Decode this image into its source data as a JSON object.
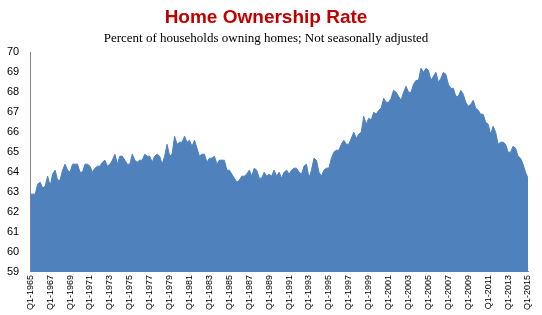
{
  "chart_data": {
    "type": "area",
    "title": "Home Ownership Rate",
    "subtitle": "Percent of households owning homes; Not seasonally adjusted",
    "categories": [
      "Q1-1965",
      null,
      null,
      null,
      null,
      null,
      null,
      null,
      "Q1-1967",
      null,
      null,
      null,
      null,
      null,
      null,
      null,
      "Q1-1969",
      null,
      null,
      null,
      null,
      null,
      null,
      null,
      "Q1-1971",
      null,
      null,
      null,
      null,
      null,
      null,
      null,
      "Q1-1973",
      null,
      null,
      null,
      null,
      null,
      null,
      null,
      "Q1-1975",
      null,
      null,
      null,
      null,
      null,
      null,
      null,
      "Q1-1977",
      null,
      null,
      null,
      null,
      null,
      null,
      null,
      "Q1-1979",
      null,
      null,
      null,
      null,
      null,
      null,
      null,
      "Q1-1981",
      null,
      null,
      null,
      null,
      null,
      null,
      null,
      "Q1-1983",
      null,
      null,
      null,
      null,
      null,
      null,
      null,
      "Q1-1985",
      null,
      null,
      null,
      null,
      null,
      null,
      null,
      "Q1-1987",
      null,
      null,
      null,
      null,
      null,
      null,
      null,
      "Q1-1989",
      null,
      null,
      null,
      null,
      null,
      null,
      null,
      "Q1-1991",
      null,
      null,
      null,
      null,
      null,
      null,
      null,
      "Q1-1993",
      null,
      null,
      null,
      null,
      null,
      null,
      null,
      "Q1-1995",
      null,
      null,
      null,
      null,
      null,
      null,
      null,
      "Q1-1997",
      null,
      null,
      null,
      null,
      null,
      null,
      null,
      "Q1-1999",
      null,
      null,
      null,
      null,
      null,
      null,
      null,
      "Q1-2001",
      null,
      null,
      null,
      null,
      null,
      null,
      null,
      "Q1-2003",
      null,
      null,
      null,
      null,
      null,
      null,
      null,
      "Q1-2005",
      null,
      null,
      null,
      null,
      null,
      null,
      null,
      "Q1-2007",
      null,
      null,
      null,
      null,
      null,
      null,
      null,
      "Q1-2009",
      null,
      null,
      null,
      null,
      null,
      null,
      null,
      "Q1-2011",
      null,
      null,
      null,
      null,
      null,
      null,
      null,
      "Q1-2013",
      null,
      null,
      null,
      null,
      null,
      null,
      null,
      "Q1-2015"
    ],
    "values": [
      62.9,
      62.9,
      62.9,
      63.4,
      63.5,
      63.2,
      63.3,
      63.8,
      63.3,
      63.9,
      64.1,
      63.6,
      63.6,
      64.1,
      64.4,
      64.1,
      64.0,
      64.4,
      64.4,
      64.4,
      64.0,
      64.0,
      64.4,
      64.4,
      64.3,
      64.0,
      64.2,
      64.3,
      64.3,
      64.5,
      64.6,
      64.3,
      64.4,
      64.6,
      64.9,
      64.4,
      64.8,
      64.8,
      64.6,
      64.4,
      64.4,
      64.9,
      64.6,
      64.5,
      64.6,
      64.6,
      64.9,
      64.8,
      64.8,
      64.5,
      64.8,
      64.9,
      64.8,
      64.4,
      64.8,
      65.4,
      64.8,
      64.9,
      65.8,
      65.4,
      65.5,
      65.5,
      65.8,
      65.5,
      65.6,
      65.3,
      65.6,
      65.2,
      64.8,
      64.9,
      64.9,
      64.5,
      64.7,
      64.7,
      64.8,
      64.4,
      64.6,
      64.6,
      64.6,
      64.1,
      64.1,
      63.9,
      63.7,
      63.5,
      63.6,
      63.8,
      63.8,
      63.9,
      64.1,
      63.8,
      64.2,
      64.1,
      63.7,
      63.7,
      64.0,
      63.8,
      63.9,
      63.8,
      64.1,
      63.8,
      64.0,
      63.7,
      64.0,
      64.1,
      63.9,
      64.1,
      64.2,
      64.2,
      64.0,
      63.9,
      64.3,
      64.4,
      63.7,
      64.1,
      64.7,
      64.6,
      64.0,
      63.8,
      64.1,
      64.2,
      64.2,
      64.7,
      65.0,
      65.1,
      65.1,
      65.4,
      65.6,
      65.4,
      65.4,
      65.7,
      66.0,
      65.7,
      65.9,
      66.0,
      66.8,
      66.4,
      66.7,
      66.6,
      67.0,
      66.9,
      67.1,
      67.2,
      67.7,
      67.5,
      67.5,
      67.7,
      68.1,
      68.0,
      67.8,
      67.6,
      68.0,
      68.3,
      68.0,
      68.0,
      68.4,
      68.6,
      68.6,
      69.2,
      69.0,
      69.2,
      69.1,
      68.6,
      68.8,
      69.0,
      68.5,
      68.7,
      69.0,
      68.9,
      68.4,
      68.2,
      68.2,
      67.8,
      67.8,
      68.1,
      67.9,
      67.5,
      67.3,
      67.4,
      67.6,
      67.2,
      67.1,
      66.9,
      66.9,
      66.5,
      66.4,
      65.9,
      66.3,
      66.0,
      65.4,
      65.5,
      65.5,
      65.4,
      65.0,
      65.0,
      65.3,
      65.2,
      64.8,
      64.7,
      64.4,
      64.0,
      63.7
    ],
    "color": "#4f81bd",
    "ylim": [
      59,
      70
    ],
    "yticks": [
      59,
      60,
      61,
      62,
      63,
      64,
      65,
      66,
      67,
      68,
      69,
      70
    ],
    "grid": false
  }
}
